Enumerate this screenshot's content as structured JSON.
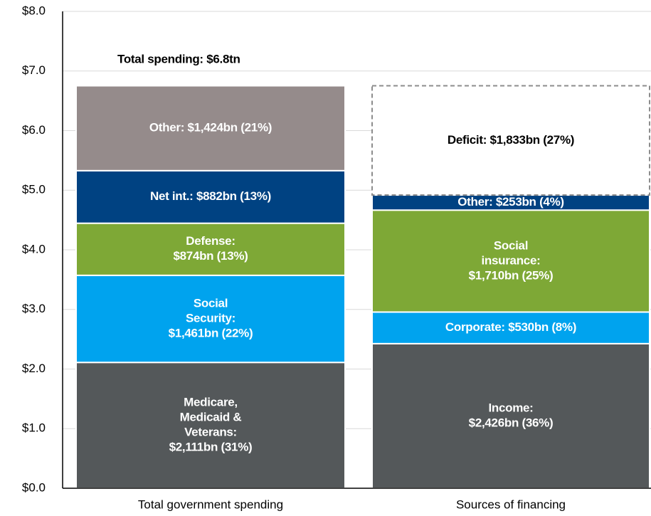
{
  "chart_data": {
    "type": "stacked_bar",
    "annotation": "Total spending: $6.8tn",
    "ylim": [
      0,
      8
    ],
    "yticks": [
      {
        "value": 0,
        "label": "$0.0"
      },
      {
        "value": 1,
        "label": "$1.0"
      },
      {
        "value": 2,
        "label": "$2.0"
      },
      {
        "value": 3,
        "label": "$3.0"
      },
      {
        "value": 4,
        "label": "$4.0"
      },
      {
        "value": 5,
        "label": "$5.0"
      },
      {
        "value": 6,
        "label": "$6.0"
      },
      {
        "value": 7,
        "label": "$7.0"
      },
      {
        "value": 8,
        "label": "$8.0"
      }
    ],
    "grid": true,
    "bars": [
      {
        "category": "Total government spending",
        "segments": [
          {
            "label_lines": [
              "Medicare,",
              "Medicaid &",
              "Veterans:",
              "$2,111bn (31%)"
            ],
            "value": 2.111,
            "color": "#54585a"
          },
          {
            "label_lines": [
              "Social",
              "Security:",
              "$1,461bn (22%)"
            ],
            "value": 1.461,
            "color": "#00a3ee"
          },
          {
            "label_lines": [
              "Defense:",
              "$874bn (13%)"
            ],
            "value": 0.874,
            "color": "#7ea836"
          },
          {
            "label_lines": [
              "Net int.: $882bn (13%)"
            ],
            "value": 0.882,
            "color": "#004282"
          },
          {
            "label_lines": [
              "Other: $1,424bn (21%)"
            ],
            "value": 1.424,
            "color": "#958b8b"
          }
        ]
      },
      {
        "category": "Sources of financing",
        "segments": [
          {
            "label_lines": [
              "Income:",
              "$2,426bn (36%)"
            ],
            "value": 2.426,
            "color": "#54585a"
          },
          {
            "label_lines": [
              "Corporate: $530bn (8%)"
            ],
            "value": 0.53,
            "color": "#00a3ee"
          },
          {
            "label_lines": [
              "Social",
              "insurance:",
              "$1,710bn (25%)"
            ],
            "value": 1.71,
            "color": "#7ea836"
          },
          {
            "label_lines": [
              "Other: $253bn (4%)"
            ],
            "value": 0.253,
            "color": "#004282"
          },
          {
            "label_lines": [
              "Deficit: $1,833bn (27%)"
            ],
            "value": 1.833,
            "color": "#ffffff",
            "dashed": true
          }
        ]
      }
    ]
  }
}
